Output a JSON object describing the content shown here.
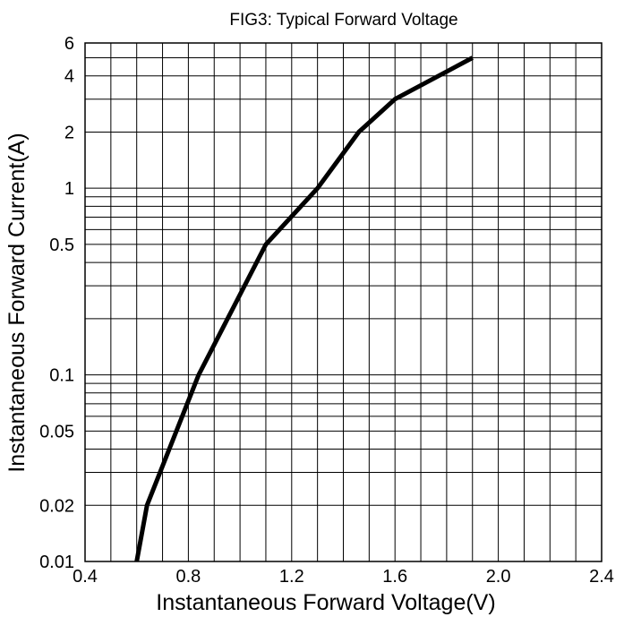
{
  "chart_data": {
    "type": "line",
    "title": "FIG3: Typical Forward Voltage",
    "xlabel": "Instantaneous Forward Voltage(V)",
    "ylabel": "Instantaneous Forward Current(A)",
    "xlim": [
      0.4,
      2.4
    ],
    "ylim": [
      0.01,
      6
    ],
    "yscale": "log",
    "grid": true,
    "x_ticks": [
      "0.4",
      "0.8",
      "1.2",
      "1.6",
      "2.0",
      "2.4"
    ],
    "x_tick_values": [
      0.4,
      0.8,
      1.2,
      1.6,
      2.0,
      2.4
    ],
    "y_ticks": [
      "0.01",
      "0.02",
      "0.05",
      "0.1",
      "0.5",
      "1",
      "2",
      "4",
      "6"
    ],
    "y_tick_values": [
      0.01,
      0.02,
      0.05,
      0.1,
      0.5,
      1,
      2,
      4,
      6
    ],
    "x_minor_step": 0.1,
    "y_grid_values": [
      0.02,
      0.03,
      0.04,
      0.05,
      0.06,
      0.07,
      0.08,
      0.09,
      0.1,
      0.2,
      0.3,
      0.4,
      0.5,
      0.6,
      0.7,
      0.8,
      0.9,
      1,
      2,
      3,
      4,
      5
    ],
    "series": [
      {
        "x": [
          0.6,
          0.64,
          0.84,
          1.1,
          1.3,
          1.46,
          1.6,
          1.9
        ],
        "y": [
          0.01,
          0.02,
          0.1,
          0.5,
          1,
          2,
          3,
          5
        ]
      }
    ],
    "colors": {
      "line": "#000000",
      "grid": "#000000",
      "background": "#ffffff"
    }
  }
}
